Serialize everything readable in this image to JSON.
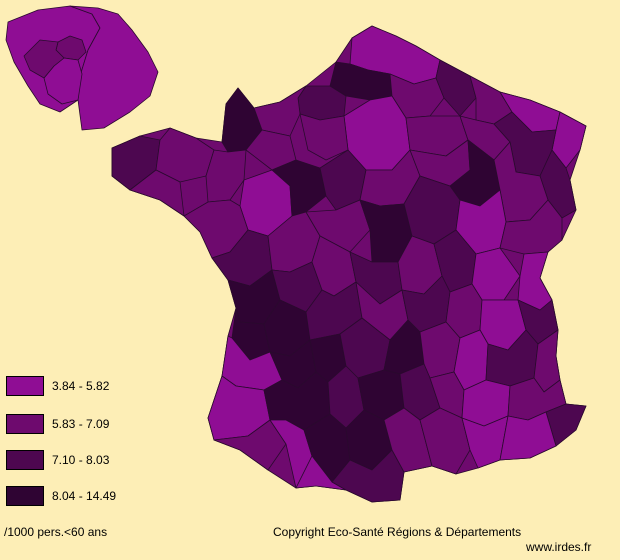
{
  "legend": {
    "items": [
      {
        "label": "3.84 - 5.82",
        "color": "#8f0d94"
      },
      {
        "label": "5.83 - 7.09",
        "color": "#6e0a6e"
      },
      {
        "label": "7.10 - 8.03",
        "color": "#4d0750"
      },
      {
        "label": "8.04 - 14.49",
        "color": "#2f0433"
      }
    ]
  },
  "footer": {
    "unit": "/1000 pers.<60 ans",
    "copyright": "Copyright Eco-Santé Régions & Départements",
    "website": "www.irdes.fr"
  }
}
